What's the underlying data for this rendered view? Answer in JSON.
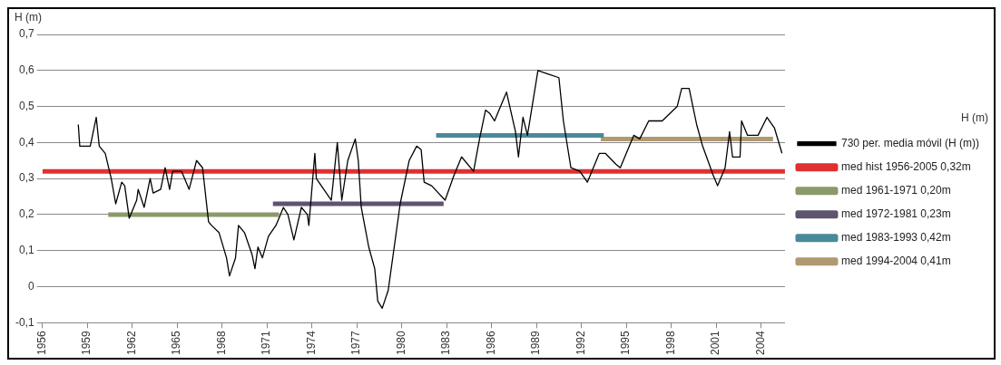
{
  "chart_data": {
    "type": "line",
    "ylabel": "H (m)",
    "legend": "right",
    "legend_title": "H (m)",
    "grid": "y",
    "marker": "none",
    "line_style": "solid",
    "xlim": [
      1956,
      2005.6
    ],
    "xticks": [
      1956,
      1959,
      1962,
      1965,
      1968,
      1971,
      1974,
      1977,
      1980,
      1983,
      1986,
      1989,
      1992,
      1995,
      1998,
      2001,
      2004
    ],
    "ylim": [
      -0.1,
      0.7
    ],
    "yticks": [
      {
        "value": -0.1,
        "label": "-0,1"
      },
      0,
      {
        "value": 0.1,
        "label": "0,1"
      },
      {
        "value": 0.2,
        "label": "0,2"
      },
      {
        "value": 0.3,
        "label": "0,3"
      },
      {
        "value": 0.4,
        "label": "0,4"
      },
      {
        "value": 0.5,
        "label": "0,5"
      },
      {
        "value": 0.6,
        "label": "0,6"
      },
      {
        "value": 0.7,
        "label": "0,7"
      }
    ],
    "series": [
      {
        "name": "med hist 1956-2005 0,32m",
        "color": "#e03030",
        "x": [
          1956,
          2005.6
        ],
        "values": [
          0.32,
          0.32
        ]
      },
      {
        "name": "med 1961-1971 0,20m",
        "color": "#8a9a6a",
        "x": [
          1960.4,
          1971.8
        ],
        "values": [
          0.2,
          0.2
        ]
      },
      {
        "name": "med 1972-1981 0,23m",
        "color": "#5e5470",
        "x": [
          1971.4,
          1982.8
        ],
        "values": [
          0.23,
          0.23
        ]
      },
      {
        "name": "med 1983-1993 0,42m",
        "color": "#4a8a98",
        "x": [
          1982.3,
          1993.5
        ],
        "values": [
          0.42,
          0.42
        ]
      },
      {
        "name": "med 1994-2004 0,41m",
        "color": "#b09870",
        "x": [
          1993.3,
          2004.8
        ],
        "values": [
          0.41,
          0.41
        ]
      },
      {
        "name": "730 per. media móvil (H (m))",
        "color": "#000000",
        "x": [
          1958.4,
          1958.5,
          1959.2,
          1959.6,
          1959.8,
          1960.2,
          1960.6,
          1960.9,
          1961.3,
          1961.5,
          1961.8,
          1962.3,
          1962.4,
          1962.8,
          1963.2,
          1963.4,
          1963.9,
          1964.2,
          1964.5,
          1964.7,
          1965.3,
          1965.8,
          1966.3,
          1966.7,
          1967.1,
          1967.3,
          1967.8,
          1968.3,
          1968.5,
          1968.9,
          1969.1,
          1969.5,
          1970.0,
          1970.2,
          1970.4,
          1970.7,
          1971.1,
          1971.6,
          1972.1,
          1972.4,
          1972.8,
          1973.3,
          1973.7,
          1973.8,
          1974.2,
          1974.3,
          1974.8,
          1975.3,
          1975.7,
          1976.0,
          1976.4,
          1976.9,
          1977.1,
          1977.3,
          1977.8,
          1978.2,
          1978.4,
          1978.7,
          1979.1,
          1979.6,
          1979.9,
          1980.5,
          1981.0,
          1981.3,
          1981.5,
          1982.0,
          1982.9,
          1983.5,
          1984.0,
          1984.8,
          1985.2,
          1985.6,
          1985.9,
          1986.2,
          1987.0,
          1987.6,
          1987.8,
          1988.1,
          1988.4,
          1989.1,
          1989.8,
          1990.5,
          1990.8,
          1991.3,
          1991.9,
          1992.4,
          1993.2,
          1993.6,
          1994.3,
          1994.6,
          1995.5,
          1995.9,
          1996.5,
          1997.4,
          1997.9,
          1998.4,
          1998.7,
          1999.2,
          1999.7,
          2000.1,
          2000.8,
          2001.1,
          2001.6,
          2001.9,
          2002.1,
          2002.6,
          2002.7,
          2003.1,
          2003.8,
          2004.4,
          2004.9,
          2005.4
        ],
        "values": [
          0.45,
          0.39,
          0.39,
          0.47,
          0.39,
          0.37,
          0.3,
          0.23,
          0.29,
          0.28,
          0.19,
          0.24,
          0.27,
          0.22,
          0.3,
          0.26,
          0.27,
          0.33,
          0.27,
          0.32,
          0.32,
          0.27,
          0.35,
          0.33,
          0.18,
          0.17,
          0.15,
          0.08,
          0.03,
          0.08,
          0.17,
          0.15,
          0.09,
          0.05,
          0.11,
          0.08,
          0.14,
          0.17,
          0.22,
          0.2,
          0.13,
          0.22,
          0.2,
          0.17,
          0.37,
          0.3,
          0.27,
          0.24,
          0.4,
          0.24,
          0.35,
          0.41,
          0.35,
          0.22,
          0.11,
          0.05,
          -0.04,
          -0.06,
          -0.01,
          0.14,
          0.23,
          0.35,
          0.39,
          0.38,
          0.29,
          0.28,
          0.24,
          0.31,
          0.36,
          0.32,
          0.41,
          0.49,
          0.48,
          0.46,
          0.54,
          0.43,
          0.36,
          0.47,
          0.42,
          0.6,
          0.59,
          0.58,
          0.46,
          0.33,
          0.32,
          0.29,
          0.37,
          0.37,
          0.34,
          0.33,
          0.42,
          0.41,
          0.46,
          0.46,
          0.48,
          0.5,
          0.55,
          0.55,
          0.45,
          0.39,
          0.31,
          0.28,
          0.33,
          0.43,
          0.36,
          0.36,
          0.46,
          0.42,
          0.42,
          0.47,
          0.44,
          0.37
        ]
      }
    ]
  }
}
